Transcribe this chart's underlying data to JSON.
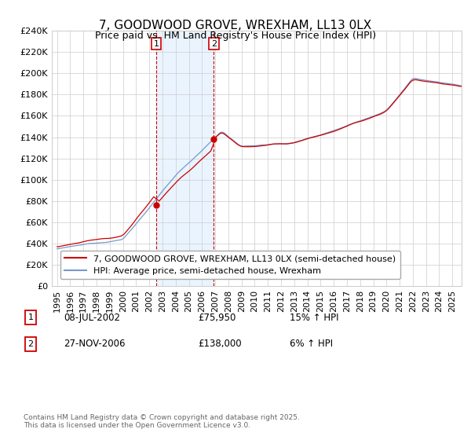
{
  "title": "7, GOODWOOD GROVE, WREXHAM, LL13 0LX",
  "subtitle": "Price paid vs. HM Land Registry's House Price Index (HPI)",
  "ylim": [
    0,
    240000
  ],
  "yticks": [
    0,
    20000,
    40000,
    60000,
    80000,
    100000,
    120000,
    140000,
    160000,
    180000,
    200000,
    220000,
    240000
  ],
  "xlim_start": 1994.6,
  "xlim_end": 2025.7,
  "sale1_x": 2002.52,
  "sale1_y": 75950,
  "sale2_x": 2006.9,
  "sale2_y": 138000,
  "sale1_date": "08-JUL-2002",
  "sale1_price": "£75,950",
  "sale1_hpi": "15% ↑ HPI",
  "sale2_date": "27-NOV-2006",
  "sale2_price": "£138,000",
  "sale2_hpi": "6% ↑ HPI",
  "line1_label": "7, GOODWOOD GROVE, WREXHAM, LL13 0LX (semi-detached house)",
  "line2_label": "HPI: Average price, semi-detached house, Wrexham",
  "line1_color": "#cc0000",
  "line2_color": "#7799cc",
  "shade_color": "#ddeeff",
  "grid_color": "#cccccc",
  "bg_color": "#ffffff",
  "footnote": "Contains HM Land Registry data © Crown copyright and database right 2025.\nThis data is licensed under the Open Government Licence v3.0.",
  "title_fontsize": 11,
  "tick_fontsize": 8,
  "legend_fontsize": 8
}
